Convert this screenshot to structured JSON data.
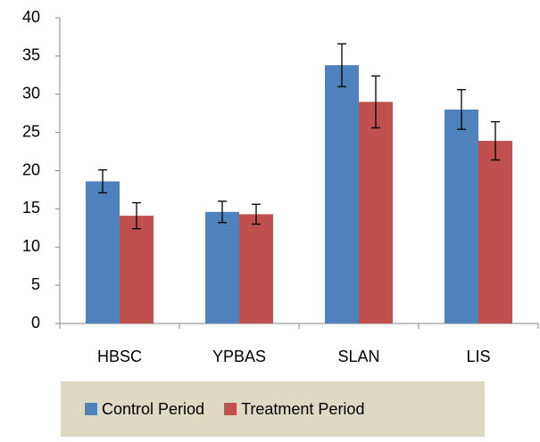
{
  "chart_data": {
    "type": "bar",
    "categories": [
      "HBSC",
      "YPBAS",
      "SLAN",
      "LIS"
    ],
    "series": [
      {
        "name": "Control Period",
        "color": "#4f81bd",
        "values": [
          18.6,
          14.6,
          33.8,
          28.0
        ],
        "errors": [
          1.5,
          1.4,
          2.8,
          2.6
        ]
      },
      {
        "name": "Treatment Period",
        "color": "#c0504d",
        "values": [
          14.1,
          14.3,
          29.0,
          23.9
        ],
        "errors": [
          1.7,
          1.3,
          3.4,
          2.5
        ]
      }
    ],
    "ylim": [
      0,
      40
    ],
    "yticks": [
      0,
      5,
      10,
      15,
      20,
      25,
      30,
      35,
      40
    ],
    "grid": false,
    "legend": "bottom"
  }
}
